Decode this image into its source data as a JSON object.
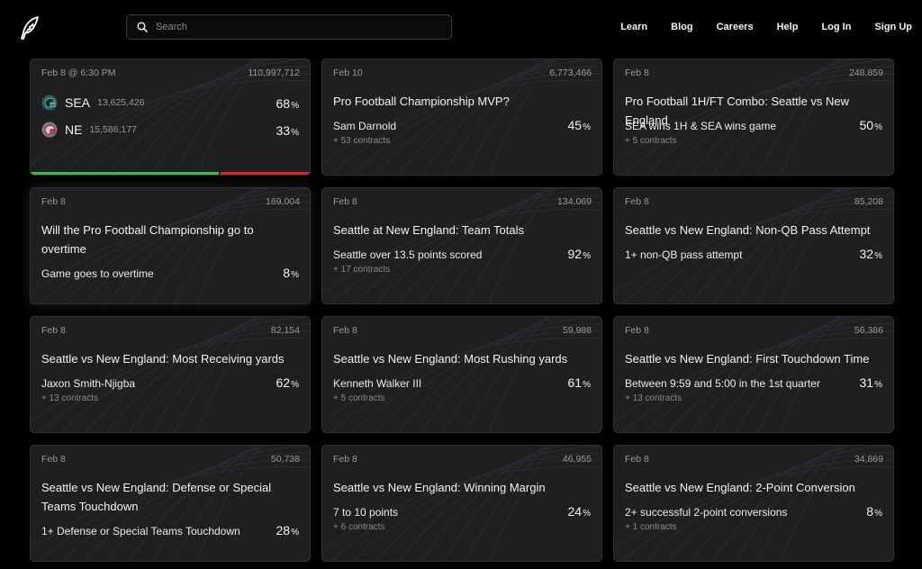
{
  "header": {
    "search_placeholder": "Search",
    "nav": [
      "Learn",
      "Blog",
      "Careers",
      "Help",
      "Log In",
      "Sign Up"
    ]
  },
  "featured": {
    "date": "Feb 8 @ 6:30 PM",
    "volume": "110,997,712",
    "teams": [
      {
        "abbr": "SEA",
        "volume": "13,625,426",
        "pct": "68",
        "color": "#002244",
        "accent": "#69be28"
      },
      {
        "abbr": "NE",
        "volume": "15,586,177",
        "pct": "33",
        "color": "#b0b7bc",
        "accent": "#c60c30"
      }
    ],
    "bar": {
      "left_fraction": 0.68,
      "left_color": "#3fb950",
      "right_color": "#d1242f"
    }
  },
  "cards": [
    {
      "date": "Feb 10",
      "volume": "6,773,466",
      "title": "Pro Football Championship MVP?",
      "outcome": "Sam Darnold",
      "pct": "45",
      "more": "+ 53 contracts"
    },
    {
      "date": "Feb 8",
      "volume": "248,859",
      "title": "Pro Football 1H/FT Combo: Seattle vs New England",
      "outcome": "SEA wins 1H & SEA wins game",
      "pct": "50",
      "more": "+ 5 contracts"
    },
    {
      "date": "Feb 8",
      "volume": "169,004",
      "title": "Will the Pro Football Championship go to overtime",
      "outcome": "Game goes to overtime",
      "pct": "8",
      "more": ""
    },
    {
      "date": "Feb 8",
      "volume": "134,069",
      "title": "Seattle at New England: Team Totals",
      "outcome": "Seattle over 13.5 points scored",
      "pct": "92",
      "more": "+ 17 contracts"
    },
    {
      "date": "Feb 8",
      "volume": "85,208",
      "title": "Seattle vs New England: Non-QB Pass Attempt",
      "outcome": "1+ non-QB pass attempt",
      "pct": "32",
      "more": ""
    },
    {
      "date": "Feb 8",
      "volume": "82,154",
      "title": "Seattle vs New England: Most Receiving yards",
      "outcome": "Jaxon Smith-Njigba",
      "pct": "62",
      "more": "+ 13 contracts"
    },
    {
      "date": "Feb 8",
      "volume": "59,988",
      "title": "Seattle vs New England: Most Rushing yards",
      "outcome": "Kenneth Walker III",
      "pct": "61",
      "more": "+ 5 contracts"
    },
    {
      "date": "Feb 8",
      "volume": "56,386",
      "title": "Seattle vs New England: First Touchdown Time",
      "outcome": "Between 9:59 and 5:00 in the 1st quarter",
      "pct": "31",
      "more": "+ 13 contracts"
    },
    {
      "date": "Feb 8",
      "volume": "50,738",
      "title": "Seattle vs New England: Defense or Special Teams Touchdown",
      "outcome": "1+ Defense or Special Teams Touchdown",
      "pct": "28",
      "more": ""
    },
    {
      "date": "Feb 8",
      "volume": "46,955",
      "title": "Seattle vs New England: Winning Margin",
      "outcome": "7 to 10 points",
      "pct": "24",
      "more": "+ 6 contracts"
    },
    {
      "date": "Feb 8",
      "volume": "34,869",
      "title": "Seattle vs New England: 2-Point Conversion",
      "outcome": "2+ successful 2-point conversions",
      "pct": "8",
      "more": "+ 1 contracts"
    }
  ],
  "pct_suffix": "%"
}
